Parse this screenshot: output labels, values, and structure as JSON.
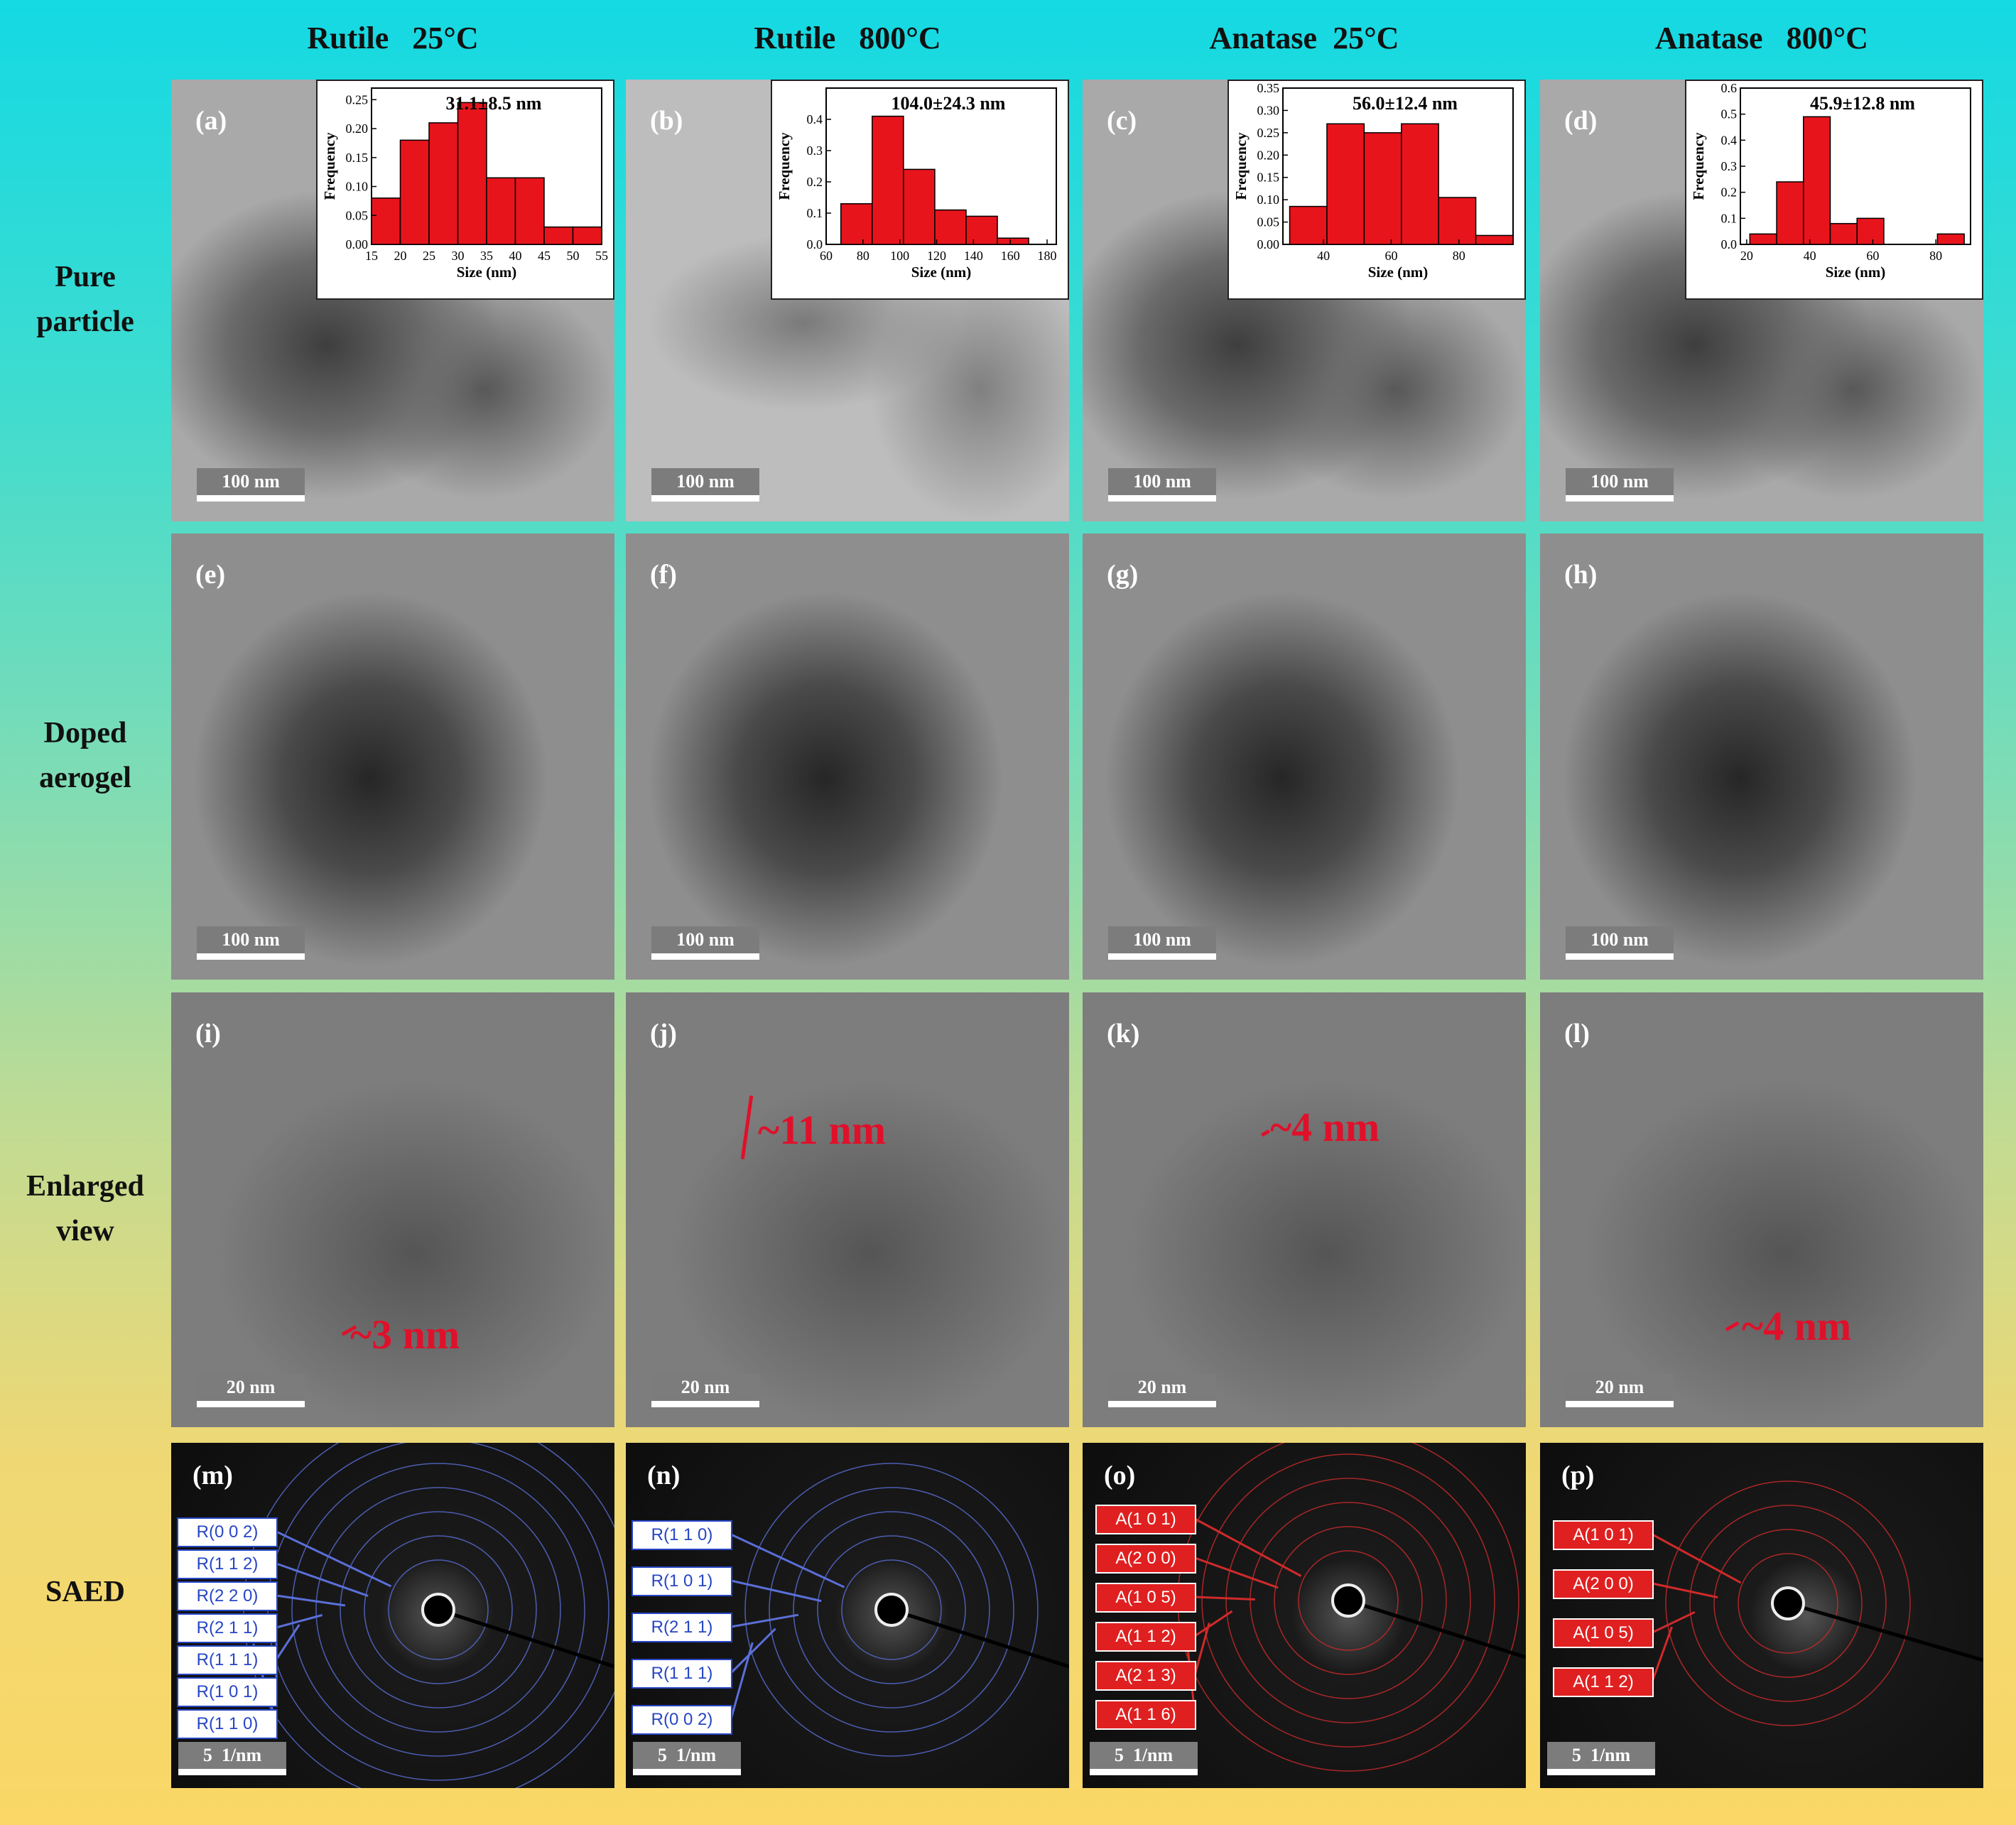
{
  "columns": [
    "Rutile   25°C",
    "Rutile   800°C",
    "Anatase  25°C",
    "Anatase   800°C"
  ],
  "rows": [
    "Pure particle",
    "Doped aerogel",
    "Enlarged view",
    "SAED"
  ],
  "panels": [
    {
      "label": "(a)",
      "scale_bar": "100 nm",
      "chart_data": {
        "type": "histogram",
        "title": "31.1±8.5 nm",
        "xlabel": "Size (nm)",
        "ylabel": "Frequency",
        "color": "#e8141c",
        "bins": [
          15,
          20,
          25,
          30,
          35,
          40,
          45,
          50,
          55
        ],
        "values": [
          0.08,
          0.18,
          0.21,
          0.245,
          0.115,
          0.115,
          0.03,
          0.03
        ],
        "xlim": [
          15,
          55
        ],
        "ylim": [
          0,
          0.27
        ],
        "xticks": [
          15,
          20,
          25,
          30,
          35,
          40,
          45,
          50,
          55
        ],
        "yticks": [
          {
            "value": 0,
            "label": "0.00"
          },
          0.05,
          {
            "value": 0.1,
            "label": "0.10"
          },
          0.15,
          {
            "value": 0.2,
            "label": "0.20"
          },
          0.25
        ]
      }
    },
    {
      "label": "(b)",
      "scale_bar": "100 nm",
      "chart_data": {
        "type": "histogram",
        "title": "104.0±24.3 nm",
        "xlabel": "Size (nm)",
        "ylabel": "Frequency",
        "color": "#e8141c",
        "bins": [
          68,
          85,
          102,
          119,
          136,
          153,
          170
        ],
        "values": [
          0.13,
          0.41,
          0.24,
          0.11,
          0.09,
          0.02
        ],
        "xlim": [
          60,
          185
        ],
        "ylim": [
          0,
          0.5
        ],
        "xticks": [
          60,
          80,
          100,
          120,
          140,
          160,
          180
        ],
        "yticks": [
          {
            "value": 0,
            "label": "0.0"
          },
          0.1,
          0.2,
          0.3,
          0.4
        ]
      }
    },
    {
      "label": "(c)",
      "scale_bar": "100 nm",
      "chart_data": {
        "type": "histogram",
        "title": "56.0±12.4 nm",
        "xlabel": "Size (nm)",
        "ylabel": "Frequency",
        "color": "#e8141c",
        "bins": [
          30,
          41,
          52,
          63,
          74,
          85,
          96
        ],
        "values": [
          0.085,
          0.27,
          0.25,
          0.27,
          0.105,
          0.02
        ],
        "xlim": [
          28,
          96
        ],
        "ylim": [
          0,
          0.35
        ],
        "xticks": [
          40,
          60,
          80
        ],
        "yticks": [
          {
            "value": 0,
            "label": "0.00"
          },
          0.05,
          {
            "value": 0.1,
            "label": "0.10"
          },
          0.15,
          {
            "value": 0.2,
            "label": "0.20"
          },
          0.25,
          {
            "value": 0.3,
            "label": "0.30"
          },
          0.35
        ]
      }
    },
    {
      "label": "(d)",
      "scale_bar": "100 nm",
      "chart_data": {
        "type": "histogram",
        "title": "45.9±12.8 nm",
        "xlabel": "Size (nm)",
        "ylabel": "Frequency",
        "color": "#e8141c",
        "bins": [
          21,
          29.5,
          38,
          46.5,
          55,
          63.5,
          72,
          80.5,
          89
        ],
        "values": [
          0.04,
          0.24,
          0.49,
          0.08,
          0.1,
          0,
          0,
          0.04
        ],
        "xlim": [
          18,
          91
        ],
        "ylim": [
          0,
          0.6
        ],
        "xticks": [
          20,
          40,
          60,
          80
        ],
        "yticks": [
          {
            "value": 0,
            "label": "0.0"
          },
          0.1,
          0.2,
          0.3,
          0.4,
          0.5,
          0.6
        ]
      }
    },
    {
      "label": "(e)",
      "scale_bar": "100 nm"
    },
    {
      "label": "(f)",
      "scale_bar": "100 nm"
    },
    {
      "label": "(g)",
      "scale_bar": "100 nm"
    },
    {
      "label": "(h)",
      "scale_bar": "100 nm"
    },
    {
      "label": "(i)",
      "scale_bar": "20 nm",
      "annotation": "~3 nm"
    },
    {
      "label": "(j)",
      "scale_bar": "20 nm",
      "annotation": "~11 nm"
    },
    {
      "label": "(k)",
      "scale_bar": "20 nm",
      "annotation": "~4 nm"
    },
    {
      "label": "(l)",
      "scale_bar": "20 nm",
      "annotation": "~4 nm"
    },
    {
      "label": "(m)",
      "scale_bar": "5  1/nm",
      "rings": [
        "R(0 0 2)",
        "R(1 1 2)",
        "R(2 2 0)",
        "R(2 1 1)",
        "R(1 1 1)",
        "R(1 0 1)",
        "R(1 1 0)"
      ]
    },
    {
      "label": "(n)",
      "scale_bar": "5  1/nm",
      "rings": [
        "R(1 1 0)",
        "R(1 0 1)",
        "R(2 1 1)",
        "R(1 1 1)",
        "R(0 0 2)"
      ]
    },
    {
      "label": "(o)",
      "scale_bar": "5  1/nm",
      "rings": [
        "A(1 0 1)",
        "A(2 0 0)",
        "A(1 0 5)",
        "A(1 1 2)",
        "A(2 1 3)",
        "A(1 1 6)"
      ]
    },
    {
      "label": "(p)",
      "scale_bar": "5  1/nm",
      "rings": [
        "A(1 0 1)",
        "A(2 0 0)",
        "A(1 0 5)",
        "A(1 1 2)"
      ]
    }
  ]
}
